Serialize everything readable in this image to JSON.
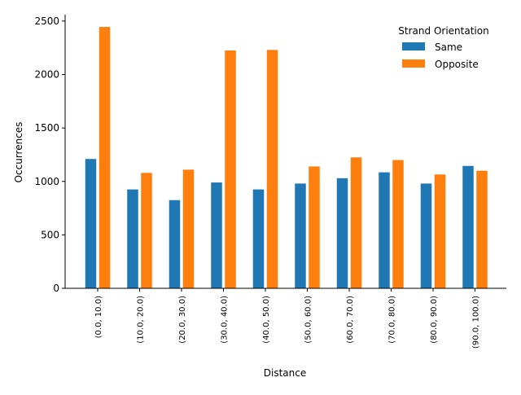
{
  "chart_data": {
    "type": "bar",
    "title": "",
    "xlabel": "Distance",
    "ylabel": "Occurrences",
    "categories": [
      "(0.0, 10.0)",
      "(10.0, 20.0)",
      "(20.0, 30.0)",
      "(30.0, 40.0)",
      "(40.0, 50.0)",
      "(50.0, 60.0)",
      "(60.0, 70.0)",
      "(70.0, 80.0)",
      "(80.0, 90.0)",
      "(90.0, 100.0)"
    ],
    "series": [
      {
        "name": "Same",
        "color": "#1f77b4",
        "values": [
          1210,
          925,
          825,
          990,
          925,
          980,
          1030,
          1085,
          980,
          1145
        ]
      },
      {
        "name": "Opposite",
        "color": "#ff7f0e",
        "values": [
          2445,
          1080,
          1110,
          2225,
          2230,
          1140,
          1225,
          1200,
          1065,
          1100
        ]
      }
    ],
    "ylim": [
      0,
      2560
    ],
    "yticks": [
      0,
      500,
      1000,
      1500,
      2000,
      2500
    ],
    "grid": false,
    "legend": {
      "title": "Strand Orientation",
      "position": "top-right"
    }
  }
}
